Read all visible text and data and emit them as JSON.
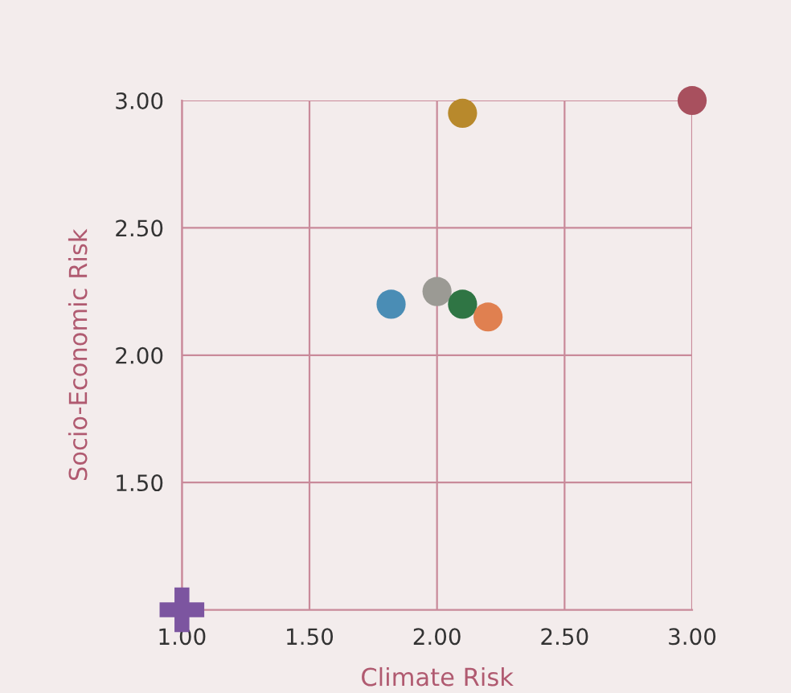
{
  "chart_data": {
    "type": "scatter",
    "xlabel": "Climate Risk",
    "ylabel": "Socio-Economic Risk",
    "xlim": [
      1.0,
      3.0
    ],
    "ylim": [
      1.0,
      3.0
    ],
    "xticks": [
      {
        "value": 1.0,
        "label": "1.00"
      },
      {
        "value": 1.5,
        "label": "1.50"
      },
      {
        "value": 2.0,
        "label": "2.00"
      },
      {
        "value": 2.5,
        "label": "2.50"
      },
      {
        "value": 3.0,
        "label": "3.00"
      }
    ],
    "yticks": [
      {
        "value": 1.5,
        "label": "1.50"
      },
      {
        "value": 2.0,
        "label": "2.00"
      },
      {
        "value": 2.5,
        "label": "2.50"
      },
      {
        "value": 3.0,
        "label": "3.00"
      }
    ],
    "grid": true,
    "series": [
      {
        "marker": "circle",
        "x": [
          2.1,
          3.0,
          1.82,
          2.0,
          2.1,
          2.2
        ],
        "values": [
          2.95,
          3.0,
          2.2,
          2.25,
          2.2,
          2.15
        ],
        "colors": [
          "#b8892c",
          "#a8505e",
          "#4a8db5",
          "#9b9a94",
          "#2f7544",
          "#e08050"
        ]
      },
      {
        "marker": "cross",
        "x": [
          1.0
        ],
        "values": [
          1.0
        ],
        "color": "#7c55a0"
      }
    ]
  }
}
